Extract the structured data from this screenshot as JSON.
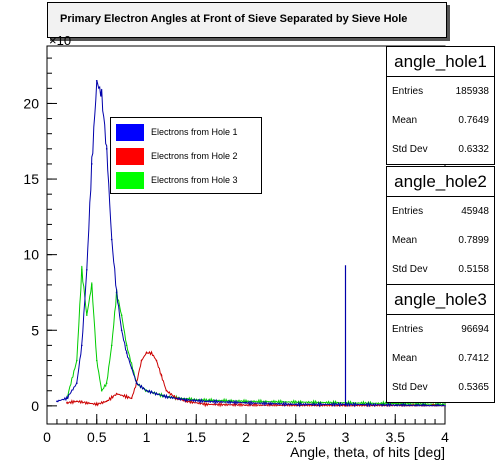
{
  "title": "Primary Electron Angles at Front of Sieve Separated by Sieve Hole",
  "exponent_label": "×10",
  "stats_boxes": [
    {
      "name": "angle_hole1",
      "entries_label": "Entries",
      "entries": "185938",
      "mean_label": "Mean",
      "mean": "0.7649",
      "std_label": "Std Dev",
      "std": "0.6332"
    },
    {
      "name": "angle_hole2",
      "entries_label": "Entries",
      "entries": "45948",
      "mean_label": "Mean",
      "mean": "0.7899",
      "std_label": "Std Dev",
      "std": "0.5158"
    },
    {
      "name": "angle_hole3",
      "entries_label": "Entries",
      "entries": "96694",
      "mean_label": "Mean",
      "mean": "0.7412",
      "std_label": "Std Dev",
      "std": "0.5365"
    }
  ],
  "legend": [
    {
      "label": "Electrons from Hole 1",
      "color": "#0000ff"
    },
    {
      "label": "Electrons from Hole 2",
      "color": "#ff0000"
    },
    {
      "label": "Electrons from Hole 3",
      "color": "#00ff00"
    }
  ],
  "chart_data": {
    "type": "line",
    "title": "Primary Electron Angles at Front of Sieve Separated by Sieve Hole",
    "xlabel": "Angle, theta, of hits [deg]",
    "ylabel": "",
    "xlim": [
      0,
      4
    ],
    "ylim": [
      -1.2,
      23.8
    ],
    "x_ticks": [
      "0",
      "0.5",
      "1",
      "1.5",
      "2",
      "2.5",
      "3",
      "3.5",
      "4"
    ],
    "y_ticks": [
      "0",
      "5",
      "10",
      "15",
      "20"
    ],
    "y_multiplier": "×10",
    "series": [
      {
        "name": "angle_hole1",
        "color": "#0000aa",
        "x": [
          0.1,
          0.2,
          0.3,
          0.35,
          0.4,
          0.45,
          0.5,
          0.55,
          0.6,
          0.65,
          0.7,
          0.75,
          0.8,
          0.85,
          0.9,
          1.0,
          1.1,
          1.2,
          1.4,
          1.6,
          2.0,
          2.5,
          3.0,
          3.5,
          4.0
        ],
        "y": [
          0.3,
          0.5,
          1.5,
          4.0,
          9.0,
          16.0,
          21.5,
          20.5,
          17.0,
          11.0,
          7.5,
          5.0,
          3.5,
          2.5,
          1.5,
          1.0,
          0.8,
          0.6,
          0.4,
          0.3,
          0.2,
          0.1,
          0.1,
          0.05,
          0.0
        ]
      },
      {
        "name": "angle_hole2",
        "color": "#cc0000",
        "x": [
          0.2,
          0.3,
          0.4,
          0.5,
          0.6,
          0.7,
          0.8,
          0.85,
          0.9,
          0.95,
          1.0,
          1.05,
          1.1,
          1.15,
          1.2,
          1.3,
          1.4,
          1.6,
          2.0,
          3.0,
          4.0
        ],
        "y": [
          0.2,
          0.3,
          0.2,
          0.1,
          0.3,
          0.8,
          0.6,
          0.5,
          1.5,
          3.0,
          3.5,
          3.5,
          3.0,
          2.0,
          1.0,
          0.5,
          0.3,
          0.1,
          0.05,
          0.0,
          0.0
        ]
      },
      {
        "name": "angle_hole3",
        "color": "#00cc00",
        "x": [
          0.2,
          0.3,
          0.35,
          0.4,
          0.45,
          0.5,
          0.55,
          0.6,
          0.65,
          0.7,
          0.75,
          0.8,
          0.9,
          1.0,
          1.2,
          1.5,
          2.0,
          3.0,
          4.0
        ],
        "y": [
          0.5,
          3.0,
          9.0,
          6.0,
          8.0,
          3.0,
          1.0,
          1.5,
          4.0,
          7.5,
          6.0,
          4.0,
          1.5,
          1.0,
          0.6,
          0.4,
          0.3,
          0.2,
          0.1
        ]
      }
    ],
    "spike": {
      "x": 3.0,
      "y": 9.3
    },
    "grid": false,
    "legend_position": "upper-left-inset"
  }
}
